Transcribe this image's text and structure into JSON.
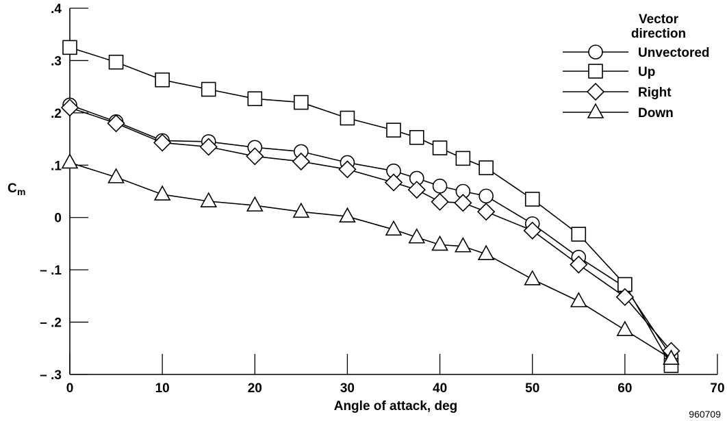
{
  "chart_data": {
    "type": "line",
    "xlabel": "Angle of attack, deg",
    "ylabel_main": "C",
    "ylabel_sub": "m",
    "xlim": [
      0,
      70
    ],
    "ylim": [
      -0.3,
      0.4
    ],
    "xticks": [
      0,
      10,
      20,
      30,
      40,
      50,
      60,
      70
    ],
    "xtick_labels": [
      "0",
      "10",
      "20",
      "30",
      "40",
      "50",
      "60",
      "70"
    ],
    "yticks": [
      -0.3,
      -0.2,
      -0.1,
      0,
      0.1,
      0.2,
      0.3,
      0.4
    ],
    "ytick_labels": [
      "– .3",
      "– .2",
      "– .1",
      "0",
      ".1",
      ".2",
      ".3",
      ".4"
    ],
    "grid": false,
    "legend_title_line1": "Vector",
    "legend_title_line2": "direction",
    "legend_placement": "top-right",
    "series": [
      {
        "name": "Unvectored",
        "marker": "circle",
        "x": [
          0,
          5,
          10,
          15,
          20,
          25,
          30,
          35,
          37.5,
          40,
          42.5,
          45,
          50,
          55,
          60,
          65
        ],
        "y": [
          0.215,
          0.183,
          0.147,
          0.145,
          0.134,
          0.126,
          0.105,
          0.089,
          0.075,
          0.06,
          0.05,
          0.041,
          -0.012,
          -0.076,
          -0.133,
          -0.265
        ]
      },
      {
        "name": "Up",
        "marker": "square",
        "x": [
          0,
          5,
          10,
          15,
          20,
          25,
          30,
          35,
          37.5,
          40,
          42.5,
          45,
          50,
          55,
          60,
          65
        ],
        "y": [
          0.325,
          0.297,
          0.263,
          0.245,
          0.227,
          0.22,
          0.19,
          0.167,
          0.153,
          0.133,
          0.113,
          0.095,
          0.035,
          -0.032,
          -0.128,
          -0.283
        ]
      },
      {
        "name": "Right",
        "marker": "diamond",
        "x": [
          0,
          5,
          10,
          15,
          20,
          25,
          30,
          35,
          37.5,
          40,
          42.5,
          45,
          50,
          55,
          60,
          65
        ],
        "y": [
          0.21,
          0.18,
          0.143,
          0.135,
          0.117,
          0.107,
          0.092,
          0.067,
          0.053,
          0.03,
          0.028,
          0.011,
          -0.025,
          -0.09,
          -0.152,
          -0.255
        ]
      },
      {
        "name": "Down",
        "marker": "triangle",
        "x": [
          0,
          5,
          10,
          15,
          20,
          25,
          30,
          35,
          37.5,
          40,
          42.5,
          45,
          50,
          55,
          60,
          65
        ],
        "y": [
          0.105,
          0.077,
          0.044,
          0.031,
          0.023,
          0.011,
          0.002,
          -0.023,
          -0.038,
          -0.052,
          -0.055,
          -0.07,
          -0.118,
          -0.16,
          -0.215,
          -0.27
        ]
      }
    ]
  },
  "figure_id": "960709"
}
